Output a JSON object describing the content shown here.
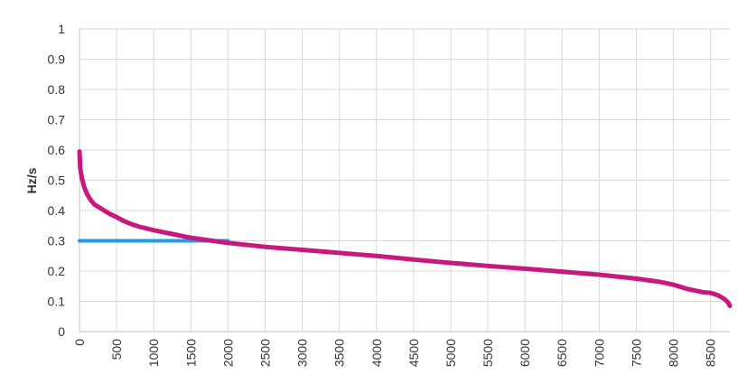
{
  "chart_data": {
    "type": "line",
    "title": "",
    "xlabel": "",
    "ylabel": "Hz/s",
    "xlim": [
      0,
      8760
    ],
    "ylim": [
      0,
      1
    ],
    "x_ticks": [
      "0",
      "500",
      "1000",
      "1500",
      "2000",
      "2500",
      "3000",
      "3500",
      "4000",
      "4500",
      "5000",
      "5500",
      "6000",
      "6500",
      "7000",
      "7500",
      "8000",
      "8500"
    ],
    "y_ticks": [
      "0",
      "0.1",
      "0.2",
      "0.3",
      "0.4",
      "0.5",
      "0.6",
      "0.7",
      "0.8",
      "0.9",
      "1"
    ],
    "grid": true,
    "legend": "none",
    "series": [
      {
        "color": "#c8177d",
        "x": [
          0,
          10,
          30,
          60,
          100,
          150,
          200,
          300,
          400,
          500,
          600,
          700,
          800,
          1000,
          1200,
          1500,
          2000,
          2500,
          3000,
          3500,
          4000,
          4500,
          5000,
          5500,
          6000,
          6500,
          7000,
          7500,
          7800,
          8000,
          8200,
          8400,
          8500,
          8600,
          8650,
          8700,
          8740,
          8760
        ],
        "y": [
          0.595,
          0.54,
          0.51,
          0.48,
          0.455,
          0.435,
          0.42,
          0.405,
          0.39,
          0.378,
          0.365,
          0.355,
          0.347,
          0.335,
          0.325,
          0.31,
          0.293,
          0.28,
          0.27,
          0.26,
          0.25,
          0.238,
          0.227,
          0.217,
          0.208,
          0.198,
          0.188,
          0.175,
          0.165,
          0.155,
          0.14,
          0.13,
          0.128,
          0.12,
          0.113,
          0.105,
          0.095,
          0.085
        ]
      },
      {
        "color": "#1f9ce8",
        "x": [
          0,
          2000
        ],
        "y": [
          0.3,
          0.3
        ]
      }
    ]
  }
}
